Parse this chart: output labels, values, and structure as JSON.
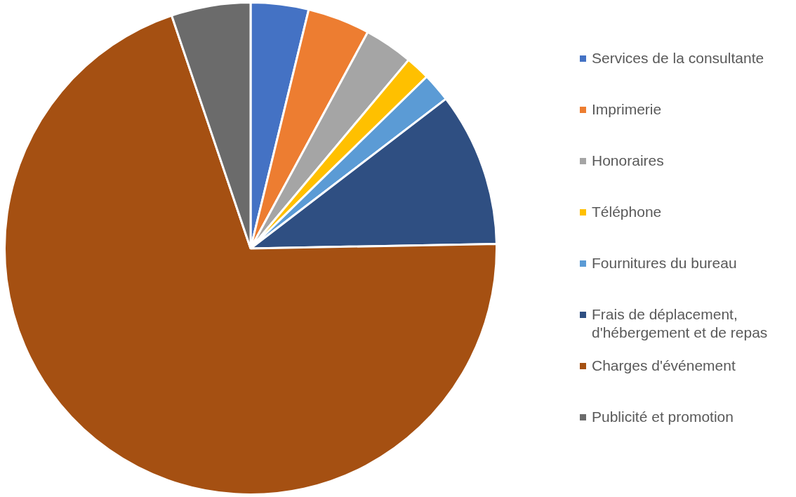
{
  "chart_data": {
    "type": "pie",
    "categories": [
      "Services de la consultante",
      "Imprimerie",
      "Honoraires",
      "Téléphone",
      "Fournitures du bureau",
      "Frais de déplacement, d'hébergement et de repas",
      "Charges d'événement",
      "Publicité et promotion"
    ],
    "values": [
      3.8,
      4.1,
      3.2,
      1.6,
      1.9,
      10.1,
      70.1,
      5.2
    ],
    "colors": [
      "#4472c4",
      "#ed7d31",
      "#a5a5a5",
      "#ffc000",
      "#5b9bd5",
      "#2f4f82",
      "#a55012",
      "#6b6b6b"
    ],
    "legend": "right"
  }
}
